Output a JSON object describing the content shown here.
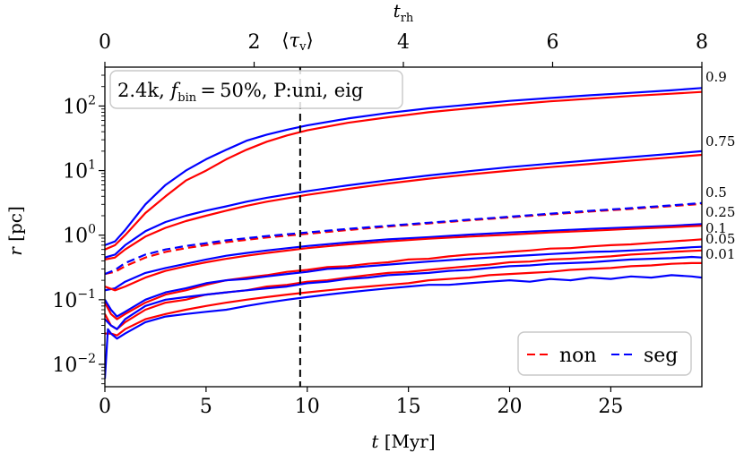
{
  "chart_data": {
    "type": "line",
    "xlabel_var": "t",
    "xlabel_unit": "[Myr]",
    "ylabel_var": "r",
    "ylabel_unit": "[pc]",
    "top_label_var": "t",
    "top_label_sub": "rh",
    "xlim": [
      0,
      29.5
    ],
    "ylim_log": [
      0.0045,
      400
    ],
    "x_ticks": [
      0,
      5,
      10,
      15,
      20,
      25
    ],
    "y_ticks": [
      {
        "exp": -2,
        "label": "10",
        "sup": "−2"
      },
      {
        "exp": -1,
        "label": "10",
        "sup": "−1"
      },
      {
        "exp": 0,
        "label": "10",
        "sup": "0"
      },
      {
        "exp": 1,
        "label": "10",
        "sup": "1"
      },
      {
        "exp": 2,
        "label": "10",
        "sup": "2"
      }
    ],
    "top_ticks": [
      {
        "label": "0",
        "x_myr": 0
      },
      {
        "label": "2",
        "x_myr": 7.375
      },
      {
        "label": "4",
        "x_myr": 14.75
      },
      {
        "label": "6",
        "x_myr": 22.125
      },
      {
        "label": "8",
        "x_myr": 29.5
      }
    ],
    "vline": {
      "x": 9.65,
      "label": "⟨τv⟩",
      "label_main": "τ",
      "label_sub": "v",
      "style": "dashed",
      "color": "#000000"
    },
    "annotation": {
      "pre": "2.4k, ",
      "f": "f",
      "fsub": "bin",
      "post": " = 50%, P:uni, eig"
    },
    "legend": {
      "position": "lower right",
      "entries": [
        {
          "name": "non",
          "color": "#ff0000"
        },
        {
          "name": "seg",
          "color": "#0000ff"
        }
      ]
    },
    "lagrangian_fractions": [
      "0.9",
      "0.75",
      "0.5",
      "0.25",
      "0.1",
      "0.05",
      "0.01"
    ],
    "series": [
      {
        "name": "non",
        "fraction": "0.9",
        "color": "#ff0000",
        "dash": false,
        "x": [
          0,
          0.5,
          1,
          2,
          3,
          4,
          5,
          6,
          7,
          8,
          9,
          10,
          12,
          14,
          16,
          18,
          20,
          22,
          24,
          26,
          28,
          29.5
        ],
        "y": [
          0.6,
          0.7,
          1.0,
          2.2,
          4.0,
          7.0,
          10,
          15,
          21,
          28,
          35,
          42,
          55,
          67,
          80,
          92,
          105,
          118,
          130,
          143,
          155,
          165
        ]
      },
      {
        "name": "seg",
        "fraction": "0.9",
        "color": "#0000ff",
        "dash": false,
        "x": [
          0,
          0.5,
          1,
          2,
          3,
          4,
          5,
          6,
          7,
          8,
          9,
          10,
          12,
          14,
          16,
          18,
          20,
          22,
          24,
          26,
          28,
          29.5
        ],
        "y": [
          0.7,
          0.8,
          1.2,
          3.0,
          6.0,
          10,
          15,
          21,
          29,
          36,
          43,
          50,
          64,
          78,
          92,
          105,
          120,
          133,
          147,
          160,
          175,
          190
        ]
      },
      {
        "name": "non",
        "fraction": "0.75",
        "color": "#ff0000",
        "dash": false,
        "x": [
          0,
          0.5,
          1,
          2,
          3,
          4,
          5,
          6,
          7,
          8,
          10,
          12,
          14,
          16,
          18,
          20,
          22,
          24,
          26,
          28,
          29.5
        ],
        "y": [
          0.42,
          0.45,
          0.6,
          0.95,
          1.3,
          1.65,
          2.0,
          2.4,
          2.85,
          3.3,
          4.2,
          5.2,
          6.3,
          7.5,
          8.7,
          10.0,
          11.3,
          12.7,
          14.3,
          16.0,
          17.5
        ]
      },
      {
        "name": "seg",
        "fraction": "0.75",
        "color": "#0000ff",
        "dash": false,
        "x": [
          0,
          0.5,
          1,
          2,
          3,
          4,
          5,
          6,
          7,
          8,
          10,
          12,
          14,
          16,
          18,
          20,
          22,
          24,
          26,
          28,
          29.5
        ],
        "y": [
          0.45,
          0.5,
          0.7,
          1.15,
          1.6,
          2.0,
          2.4,
          2.8,
          3.3,
          3.8,
          4.8,
          5.9,
          7.1,
          8.4,
          9.8,
          11.3,
          12.8,
          14.4,
          16.2,
          18.2,
          20.0
        ]
      },
      {
        "name": "non",
        "fraction": "0.5",
        "color": "#ff0000",
        "dash": true,
        "x": [
          0,
          0.5,
          1,
          2,
          3,
          4,
          6,
          8,
          10,
          12,
          14,
          16,
          18,
          20,
          22,
          24,
          26,
          28,
          29.5
        ],
        "y": [
          0.25,
          0.27,
          0.33,
          0.45,
          0.55,
          0.63,
          0.78,
          0.92,
          1.05,
          1.2,
          1.36,
          1.52,
          1.7,
          1.88,
          2.1,
          2.32,
          2.55,
          2.82,
          3.05
        ]
      },
      {
        "name": "seg",
        "fraction": "0.5",
        "color": "#0000ff",
        "dash": true,
        "x": [
          0,
          0.5,
          1,
          2,
          3,
          4,
          6,
          8,
          10,
          12,
          14,
          16,
          18,
          20,
          22,
          24,
          26,
          28,
          29.5
        ],
        "y": [
          0.25,
          0.29,
          0.37,
          0.5,
          0.6,
          0.68,
          0.83,
          0.97,
          1.1,
          1.25,
          1.4,
          1.56,
          1.74,
          1.93,
          2.15,
          2.38,
          2.62,
          2.9,
          3.15
        ]
      },
      {
        "name": "seg",
        "fraction": "0.25",
        "color": "#0000ff",
        "dash": false,
        "x": [
          0,
          0.5,
          1,
          2,
          3,
          4,
          5,
          6,
          7,
          8,
          10,
          12,
          14,
          16,
          18,
          20,
          22,
          24,
          26,
          28,
          29.5
        ],
        "y": [
          0.14,
          0.15,
          0.19,
          0.26,
          0.31,
          0.36,
          0.42,
          0.48,
          0.53,
          0.58,
          0.68,
          0.77,
          0.86,
          0.93,
          1.02,
          1.1,
          1.17,
          1.25,
          1.32,
          1.4,
          1.48
        ]
      },
      {
        "name": "non",
        "fraction": "0.25",
        "color": "#ff0000",
        "dash": false,
        "x": [
          0,
          0.5,
          1,
          2,
          3,
          4,
          5,
          6,
          7,
          8,
          10,
          12,
          14,
          16,
          18,
          20,
          22,
          24,
          26,
          28,
          29.5
        ],
        "y": [
          0.16,
          0.14,
          0.16,
          0.22,
          0.28,
          0.33,
          0.38,
          0.43,
          0.48,
          0.53,
          0.63,
          0.72,
          0.8,
          0.88,
          0.95,
          1.02,
          1.1,
          1.17,
          1.25,
          1.33,
          1.4
        ]
      },
      {
        "name": "non",
        "fraction": "0.1",
        "color": "#ff0000",
        "dash": false,
        "x": [
          0,
          0.3,
          0.6,
          1,
          2,
          3,
          4,
          5,
          6,
          7,
          8,
          9,
          10,
          11,
          12,
          13,
          14,
          15,
          16,
          17,
          18,
          19,
          20,
          21,
          22,
          23,
          24,
          25,
          26,
          27,
          28,
          29,
          29.5
        ],
        "y": [
          0.09,
          0.06,
          0.05,
          0.06,
          0.09,
          0.12,
          0.14,
          0.17,
          0.2,
          0.22,
          0.24,
          0.27,
          0.29,
          0.32,
          0.33,
          0.36,
          0.38,
          0.42,
          0.43,
          0.47,
          0.5,
          0.52,
          0.55,
          0.58,
          0.62,
          0.63,
          0.67,
          0.7,
          0.72,
          0.76,
          0.8,
          0.84,
          0.86
        ]
      },
      {
        "name": "seg",
        "fraction": "0.1",
        "color": "#0000ff",
        "dash": false,
        "x": [
          0,
          0.3,
          0.6,
          1,
          2,
          3,
          4,
          5,
          6,
          7,
          8,
          9,
          10,
          11,
          12,
          13,
          14,
          15,
          16,
          17,
          18,
          19,
          20,
          21,
          22,
          23,
          24,
          25,
          26,
          27,
          28,
          29,
          29.5
        ],
        "y": [
          0.1,
          0.07,
          0.055,
          0.065,
          0.1,
          0.13,
          0.15,
          0.18,
          0.2,
          0.21,
          0.23,
          0.25,
          0.27,
          0.3,
          0.31,
          0.33,
          0.35,
          0.37,
          0.39,
          0.41,
          0.43,
          0.45,
          0.47,
          0.49,
          0.51,
          0.53,
          0.55,
          0.56,
          0.58,
          0.6,
          0.62,
          0.65,
          0.66
        ]
      },
      {
        "name": "non",
        "fraction": "0.05",
        "color": "#ff0000",
        "dash": false,
        "x": [
          0,
          0.3,
          0.6,
          1,
          2,
          3,
          4,
          5,
          6,
          7,
          8,
          9,
          10,
          11,
          12,
          13,
          14,
          15,
          16,
          17,
          18,
          19,
          20,
          21,
          22,
          23,
          24,
          25,
          26,
          27,
          28,
          29,
          29.5
        ],
        "y": [
          0.06,
          0.04,
          0.035,
          0.045,
          0.07,
          0.09,
          0.1,
          0.12,
          0.13,
          0.14,
          0.16,
          0.17,
          0.19,
          0.2,
          0.22,
          0.24,
          0.26,
          0.27,
          0.29,
          0.31,
          0.33,
          0.35,
          0.38,
          0.39,
          0.42,
          0.43,
          0.45,
          0.47,
          0.5,
          0.52,
          0.55,
          0.57,
          0.58
        ]
      },
      {
        "name": "seg",
        "fraction": "0.05",
        "color": "#0000ff",
        "dash": false,
        "x": [
          0,
          0.3,
          0.6,
          1,
          2,
          3,
          4,
          5,
          6,
          7,
          8,
          9,
          10,
          11,
          12,
          13,
          14,
          15,
          16,
          17,
          18,
          19,
          20,
          21,
          22,
          23,
          24,
          25,
          26,
          27,
          28,
          29,
          29.5
        ],
        "y": [
          0.05,
          0.04,
          0.035,
          0.05,
          0.08,
          0.1,
          0.11,
          0.12,
          0.13,
          0.14,
          0.15,
          0.16,
          0.18,
          0.19,
          0.21,
          0.22,
          0.24,
          0.25,
          0.26,
          0.28,
          0.29,
          0.31,
          0.33,
          0.34,
          0.36,
          0.37,
          0.38,
          0.4,
          0.42,
          0.43,
          0.44,
          0.46,
          0.45
        ]
      },
      {
        "name": "non",
        "fraction": "0.01",
        "color": "#ff0000",
        "dash": false,
        "x": [
          0,
          0.3,
          0.6,
          1,
          2,
          3,
          4,
          5,
          6,
          7,
          8,
          9,
          10,
          11,
          12,
          13,
          14,
          15,
          16,
          17,
          18,
          19,
          20,
          21,
          22,
          23,
          24,
          25,
          26,
          27,
          28,
          29,
          29.5
        ],
        "y": [
          0.03,
          0.03,
          0.028,
          0.035,
          0.05,
          0.06,
          0.07,
          0.08,
          0.09,
          0.1,
          0.11,
          0.12,
          0.13,
          0.14,
          0.15,
          0.16,
          0.17,
          0.18,
          0.2,
          0.21,
          0.22,
          0.24,
          0.25,
          0.26,
          0.27,
          0.29,
          0.3,
          0.31,
          0.33,
          0.34,
          0.36,
          0.37,
          0.37
        ]
      },
      {
        "name": "seg",
        "fraction": "0.01",
        "color": "#0000ff",
        "dash": false,
        "x": [
          0,
          0.15,
          0.3,
          0.6,
          1,
          2,
          3,
          4,
          5,
          6,
          7,
          8,
          9,
          10,
          11,
          12,
          13,
          14,
          15,
          16,
          17,
          18,
          19,
          20,
          21,
          22,
          23,
          24,
          25,
          26,
          27,
          28,
          29,
          29.5
        ],
        "y": [
          0.006,
          0.035,
          0.03,
          0.025,
          0.03,
          0.045,
          0.055,
          0.06,
          0.065,
          0.07,
          0.08,
          0.09,
          0.1,
          0.11,
          0.12,
          0.13,
          0.14,
          0.15,
          0.16,
          0.17,
          0.17,
          0.18,
          0.19,
          0.2,
          0.19,
          0.21,
          0.2,
          0.22,
          0.21,
          0.23,
          0.22,
          0.24,
          0.23,
          0.22
        ]
      }
    ]
  }
}
